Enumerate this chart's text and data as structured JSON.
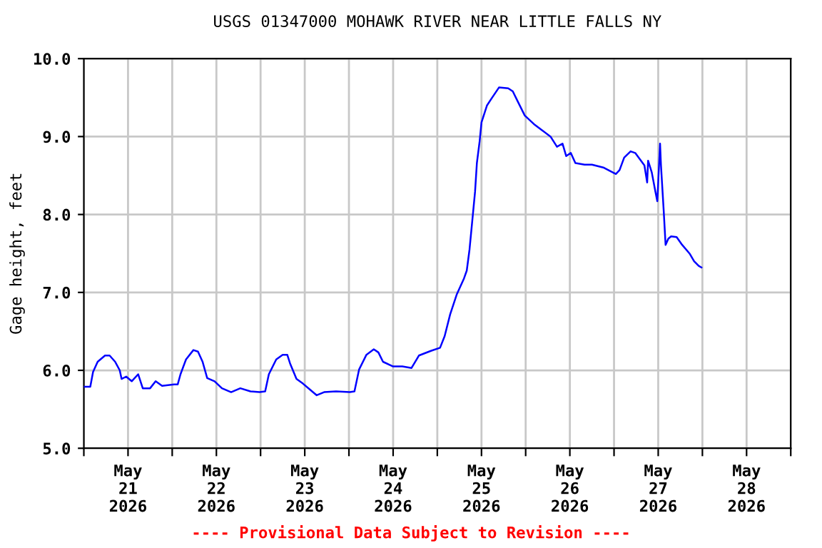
{
  "chart_data": {
    "type": "line",
    "title": "USGS 01347000 MOHAWK RIVER NEAR LITTLE FALLS NY",
    "ylabel": "Gage height, feet",
    "annotations": [
      "---- Provisional Data Subject to Revision ----"
    ],
    "xlim": [
      "2026-05-21T00:00",
      "2026-05-29T00:00"
    ],
    "xticks": [
      {
        "value": "2026-05-21T00:00",
        "label": null
      },
      {
        "value": "2026-05-21T12:00",
        "label": "May\n21\n2026"
      },
      {
        "value": "2026-05-22T00:00",
        "label": null
      },
      {
        "value": "2026-05-22T12:00",
        "label": "May\n22\n2026"
      },
      {
        "value": "2026-05-23T00:00",
        "label": null
      },
      {
        "value": "2026-05-23T12:00",
        "label": "May\n23\n2026"
      },
      {
        "value": "2026-05-24T00:00",
        "label": null
      },
      {
        "value": "2026-05-24T12:00",
        "label": "May\n24\n2026"
      },
      {
        "value": "2026-05-25T00:00",
        "label": null
      },
      {
        "value": "2026-05-25T12:00",
        "label": "May\n25\n2026"
      },
      {
        "value": "2026-05-26T00:00",
        "label": null
      },
      {
        "value": "2026-05-26T12:00",
        "label": "May\n26\n2026"
      },
      {
        "value": "2026-05-27T00:00",
        "label": null
      },
      {
        "value": "2026-05-27T12:00",
        "label": "May\n27\n2026"
      },
      {
        "value": "2026-05-28T00:00",
        "label": null
      },
      {
        "value": "2026-05-28T12:00",
        "label": "May\n28\n2026"
      },
      {
        "value": "2026-05-29T00:00",
        "label": null
      }
    ],
    "ylim": [
      5.0,
      10.0
    ],
    "yticks": [
      {
        "value": 5,
        "label": "5.0"
      },
      {
        "value": 6,
        "label": "6.0"
      },
      {
        "value": 7,
        "label": "7.0"
      },
      {
        "value": 8,
        "label": "8.0"
      },
      {
        "value": 9,
        "label": "9.0"
      },
      {
        "value": 10,
        "label": "10.0"
      }
    ],
    "grid": true,
    "marker": "none",
    "line_style": "solid",
    "series": [
      {
        "color": "#0000ff",
        "x": [
          "2026-05-21T00:00",
          "2026-05-21T01:45",
          "2026-05-21T02:30",
          "2026-05-21T03:45",
          "2026-05-21T05:45",
          "2026-05-21T07:00",
          "2026-05-21T08:30",
          "2026-05-21T09:45",
          "2026-05-21T10:15",
          "2026-05-21T11:30",
          "2026-05-21T13:00",
          "2026-05-21T14:45",
          "2026-05-21T16:00",
          "2026-05-21T18:00",
          "2026-05-21T19:30",
          "2026-05-21T21:15",
          "2026-05-22T00:30",
          "2026-05-22T01:30",
          "2026-05-22T02:15",
          "2026-05-22T03:45",
          "2026-05-22T05:45",
          "2026-05-22T07:00",
          "2026-05-22T08:15",
          "2026-05-22T09:30",
          "2026-05-22T11:30",
          "2026-05-22T13:30",
          "2026-05-22T16:00",
          "2026-05-22T18:30",
          "2026-05-22T21:15",
          "2026-05-22T23:45",
          "2026-05-23T01:15",
          "2026-05-23T02:15",
          "2026-05-23T04:15",
          "2026-05-23T06:00",
          "2026-05-23T07:15",
          "2026-05-23T08:00",
          "2026-05-23T09:45",
          "2026-05-23T11:30",
          "2026-05-23T13:15",
          "2026-05-23T15:15",
          "2026-05-23T17:15",
          "2026-05-23T20:30",
          "2026-05-24T00:15",
          "2026-05-24T01:30",
          "2026-05-24T02:45",
          "2026-05-24T04:45",
          "2026-05-24T06:45",
          "2026-05-24T08:00",
          "2026-05-24T09:15",
          "2026-05-24T12:00",
          "2026-05-24T14:30",
          "2026-05-24T17:00",
          "2026-05-24T19:00",
          "2026-05-24T22:15",
          "2026-05-25T00:45",
          "2026-05-25T02:00",
          "2026-05-25T03:30",
          "2026-05-25T05:15",
          "2026-05-25T07:15",
          "2026-05-25T08:00",
          "2026-05-25T08:45",
          "2026-05-25T09:30",
          "2026-05-25T10:15",
          "2026-05-25T10:45",
          "2026-05-25T11:30",
          "2026-05-25T12:00",
          "2026-05-25T13:30",
          "2026-05-25T14:45",
          "2026-05-25T16:45",
          "2026-05-25T19:15",
          "2026-05-25T20:30",
          "2026-05-25T21:45",
          "2026-05-25T23:45",
          "2026-05-26T02:15",
          "2026-05-26T04:30",
          "2026-05-26T06:45",
          "2026-05-26T08:30",
          "2026-05-26T10:00",
          "2026-05-26T11:00",
          "2026-05-26T12:15",
          "2026-05-26T13:30",
          "2026-05-26T16:00",
          "2026-05-26T18:00",
          "2026-05-26T21:15",
          "2026-05-27T00:30",
          "2026-05-27T01:30",
          "2026-05-27T02:45",
          "2026-05-27T04:30",
          "2026-05-27T05:45",
          "2026-05-27T07:00",
          "2026-05-27T08:15",
          "2026-05-27T09:00",
          "2026-05-27T09:15",
          "2026-05-27T10:15",
          "2026-05-27T11:15",
          "2026-05-27T11:45",
          "2026-05-27T12:30",
          "2026-05-27T12:45",
          "2026-05-27T13:30",
          "2026-05-27T14:00",
          "2026-05-27T14:45",
          "2026-05-27T15:30",
          "2026-05-27T17:00",
          "2026-05-27T18:30",
          "2026-05-27T20:30",
          "2026-05-27T21:45",
          "2026-05-27T23:00",
          "2026-05-27T23:45"
        ],
        "values": [
          5.79,
          5.79,
          5.98,
          6.11,
          6.19,
          6.19,
          6.11,
          6.0,
          5.89,
          5.92,
          5.86,
          5.95,
          5.77,
          5.77,
          5.86,
          5.8,
          5.82,
          5.82,
          5.95,
          6.14,
          6.26,
          6.24,
          6.11,
          5.9,
          5.86,
          5.77,
          5.72,
          5.77,
          5.73,
          5.72,
          5.73,
          5.95,
          6.14,
          6.2,
          6.2,
          6.09,
          5.89,
          5.83,
          5.76,
          5.68,
          5.72,
          5.73,
          5.72,
          5.73,
          6.01,
          6.2,
          6.27,
          6.23,
          6.11,
          6.05,
          6.05,
          6.03,
          6.19,
          6.25,
          6.29,
          6.44,
          6.72,
          6.97,
          7.18,
          7.28,
          7.55,
          7.92,
          8.29,
          8.66,
          8.94,
          9.18,
          9.4,
          9.49,
          9.63,
          9.62,
          9.58,
          9.46,
          9.27,
          9.16,
          9.08,
          9.0,
          8.87,
          8.91,
          8.75,
          8.79,
          8.66,
          8.64,
          8.64,
          8.6,
          8.52,
          8.57,
          8.73,
          8.81,
          8.79,
          8.71,
          8.63,
          8.41,
          8.69,
          8.54,
          8.29,
          8.17,
          8.91,
          8.63,
          8.04,
          7.61,
          7.69,
          7.72,
          7.71,
          7.61,
          7.5,
          7.4,
          7.34,
          7.32
        ]
      }
    ]
  }
}
